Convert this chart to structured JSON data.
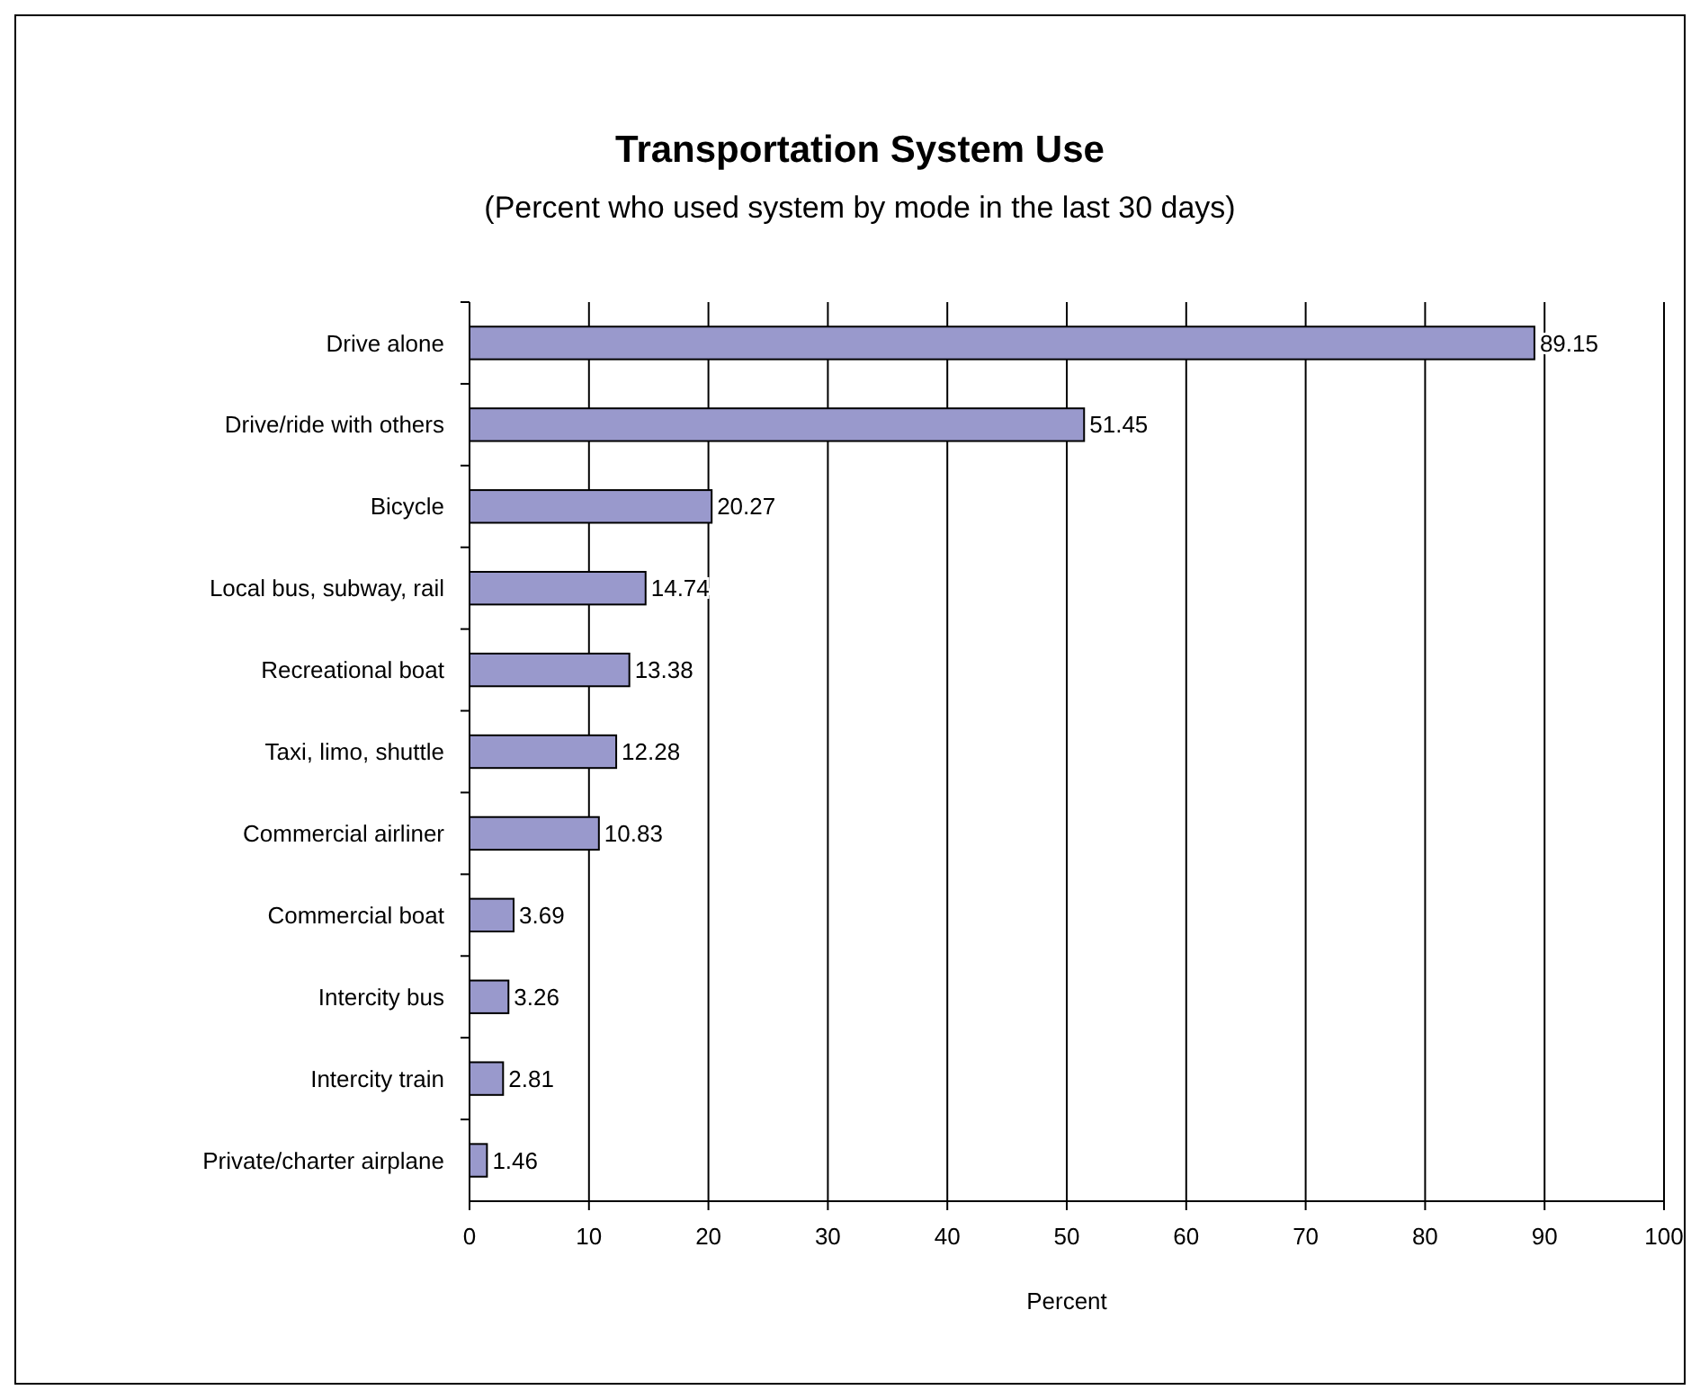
{
  "chart_data": {
    "type": "bar",
    "orientation": "horizontal",
    "title": "Transportation System Use",
    "subtitle": "(Percent who used system by mode in the last 30 days)",
    "xlabel": "Percent",
    "categories": [
      "Drive alone",
      "Drive/ride with others",
      "Bicycle",
      "Local bus, subway, rail",
      "Recreational boat",
      "Taxi, limo, shuttle",
      "Commercial airliner",
      "Commercial boat",
      "Intercity bus",
      "Intercity train",
      "Private/charter airplane"
    ],
    "values": [
      89.15,
      51.45,
      20.27,
      14.74,
      13.38,
      12.28,
      10.83,
      3.69,
      3.26,
      2.81,
      1.46
    ],
    "color": "#9999cc",
    "xlim": [
      0,
      100
    ],
    "xticks": [
      0,
      10,
      20,
      30,
      40,
      50,
      60,
      70,
      80,
      90,
      100
    ],
    "grid": "x",
    "data_labels": true
  }
}
